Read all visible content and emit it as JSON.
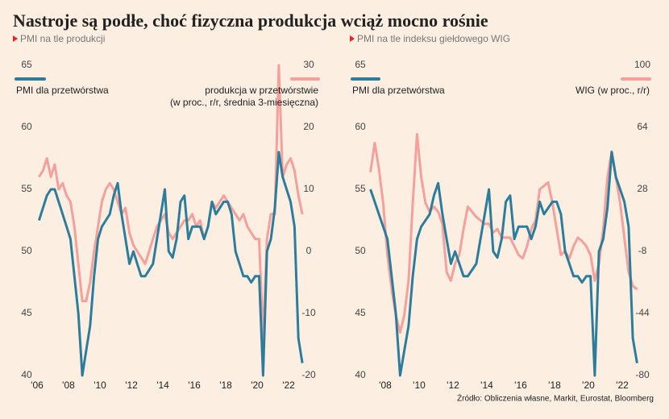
{
  "title": "Nastroje są podłe, choć fizyczna produkcja wciąż mocno rośnie",
  "source": "Źródło: Obliczenia własne, Markit, Eurostat, Bloomberg",
  "chart_data": [
    {
      "type": "line",
      "subtitle": "PMI na tle produkcji",
      "xlim": [
        2006,
        2022.9
      ],
      "xticks": [
        {
          "value": 2006,
          "label": "'06"
        },
        {
          "value": 2008,
          "label": "'08"
        },
        {
          "value": 2010,
          "label": "'10"
        },
        {
          "value": 2012,
          "label": "'12"
        },
        {
          "value": 2014,
          "label": "'14"
        },
        {
          "value": 2016,
          "label": "'16"
        },
        {
          "value": 2018,
          "label": "'18"
        },
        {
          "value": 2020,
          "label": "'20"
        },
        {
          "value": 2022,
          "label": "'22"
        }
      ],
      "ylim": [
        40,
        65
      ],
      "yticks": [
        40,
        45,
        50,
        55,
        60,
        65
      ],
      "y2lim": [
        -20,
        30
      ],
      "y2ticks": [
        -20,
        -10,
        0,
        10,
        20,
        30
      ],
      "x": [
        2006.125,
        2006.375,
        2006.625,
        2006.875,
        2007.125,
        2007.375,
        2007.625,
        2007.875,
        2008.125,
        2008.375,
        2008.625,
        2008.875,
        2009.125,
        2009.375,
        2009.625,
        2009.875,
        2010.125,
        2010.375,
        2010.625,
        2010.875,
        2011.125,
        2011.375,
        2011.625,
        2011.875,
        2012.125,
        2012.375,
        2012.625,
        2012.875,
        2013.125,
        2013.375,
        2013.625,
        2013.875,
        2014.125,
        2014.375,
        2014.625,
        2014.875,
        2015.125,
        2015.375,
        2015.625,
        2015.875,
        2016.125,
        2016.375,
        2016.625,
        2016.875,
        2017.125,
        2017.375,
        2017.625,
        2017.875,
        2018.125,
        2018.375,
        2018.625,
        2018.875,
        2019.125,
        2019.375,
        2019.625,
        2019.875,
        2020.125,
        2020.375,
        2020.625,
        2020.875,
        2021.125,
        2021.375,
        2021.625,
        2021.875,
        2022.125,
        2022.375,
        2022.625,
        2022.875
      ],
      "series": [
        {
          "name": "produkcja w przetwórstwie\n(w proc., r/r, średnia 3-miesięczna)",
          "color": "#f5a09b",
          "axis": "y2",
          "values": [
            12,
            13,
            15,
            12,
            14,
            10,
            11,
            9,
            8,
            4,
            -2,
            -8,
            -8,
            -5,
            0,
            4,
            8,
            10,
            11,
            10,
            8,
            6,
            7,
            3,
            1,
            0,
            -1,
            -2,
            0,
            2,
            4,
            5,
            6,
            3,
            2,
            3,
            4,
            5,
            5,
            6,
            4,
            5,
            2,
            4,
            8,
            7,
            8,
            9,
            8,
            7,
            6,
            5,
            6,
            4,
            3,
            2,
            2,
            -14,
            2,
            6,
            6,
            30,
            12,
            14,
            15,
            13,
            9,
            6
          ]
        },
        {
          "name": "PMI dla przetwórstwa",
          "color": "#2c7d9c",
          "values": [
            52.5,
            53.5,
            54.5,
            55,
            55,
            54,
            53,
            52,
            51,
            48,
            45,
            40,
            42,
            44,
            48,
            51,
            52,
            52.5,
            53,
            54.5,
            55.5,
            53,
            51,
            49,
            50,
            49,
            48,
            48,
            48.5,
            49,
            51,
            53,
            55,
            50,
            49.5,
            51,
            54,
            54.5,
            51,
            52,
            52,
            52,
            51,
            52,
            54,
            53,
            53.5,
            54,
            54,
            53,
            50,
            49,
            48,
            48,
            47.5,
            48,
            48,
            40,
            50,
            51,
            53.5,
            58,
            56,
            55,
            54,
            52,
            43,
            41
          ]
        }
      ]
    },
    {
      "type": "line",
      "subtitle": "PMI na tle indeksu giełdowego WIG",
      "xlim": [
        2007,
        2022.9
      ],
      "xticks": [
        {
          "value": 2008,
          "label": "'08"
        },
        {
          "value": 2010,
          "label": "'10"
        },
        {
          "value": 2012,
          "label": "'12"
        },
        {
          "value": 2014,
          "label": "'14"
        },
        {
          "value": 2016,
          "label": "'16"
        },
        {
          "value": 2018,
          "label": "'18"
        },
        {
          "value": 2020,
          "label": "'20"
        },
        {
          "value": 2022,
          "label": "'22"
        }
      ],
      "ylim": [
        40,
        65
      ],
      "yticks": [
        40,
        45,
        50,
        55,
        60,
        65
      ],
      "y2lim": [
        -80,
        100
      ],
      "y2ticks": [
        -80,
        -44,
        -8,
        28,
        64,
        100
      ],
      "x": [
        2007.125,
        2007.375,
        2007.625,
        2007.875,
        2008.125,
        2008.375,
        2008.625,
        2008.875,
        2009.125,
        2009.375,
        2009.625,
        2009.875,
        2010.125,
        2010.375,
        2010.625,
        2010.875,
        2011.125,
        2011.375,
        2011.625,
        2011.875,
        2012.125,
        2012.375,
        2012.625,
        2012.875,
        2013.125,
        2013.375,
        2013.625,
        2013.875,
        2014.125,
        2014.375,
        2014.625,
        2014.875,
        2015.125,
        2015.375,
        2015.625,
        2015.875,
        2016.125,
        2016.375,
        2016.625,
        2016.875,
        2017.125,
        2017.375,
        2017.625,
        2017.875,
        2018.125,
        2018.375,
        2018.625,
        2018.875,
        2019.125,
        2019.375,
        2019.625,
        2019.875,
        2020.125,
        2020.375,
        2020.625,
        2020.875,
        2021.125,
        2021.375,
        2021.625,
        2021.875,
        2022.125,
        2022.375,
        2022.625,
        2022.875
      ],
      "series": [
        {
          "name": "WIG (w proc., r/r)",
          "color": "#f5a09b",
          "axis": "y2",
          "values": [
            38,
            55,
            40,
            20,
            -10,
            -30,
            -45,
            -55,
            -45,
            -25,
            20,
            60,
            35,
            20,
            15,
            18,
            15,
            8,
            -20,
            -25,
            -15,
            -10,
            5,
            18,
            15,
            12,
            10,
            8,
            8,
            3,
            5,
            0,
            0,
            0,
            -5,
            -10,
            -12,
            -5,
            5,
            10,
            28,
            30,
            32,
            20,
            5,
            -10,
            -8,
            -12,
            -5,
            0,
            -2,
            -5,
            -10,
            -25,
            -15,
            5,
            35,
            50,
            35,
            20,
            0,
            -20,
            -28,
            -30
          ]
        },
        {
          "name": "PMI dla przetwórstwa",
          "color": "#2c7d9c",
          "values": [
            55,
            54,
            53,
            52,
            51,
            48,
            45,
            40,
            42,
            44,
            48,
            51,
            52,
            52.5,
            53,
            54.5,
            55.5,
            53,
            51,
            49,
            50,
            49,
            48,
            48,
            48.5,
            49,
            51,
            53,
            55,
            50,
            49.5,
            51,
            54,
            54.5,
            51,
            52,
            52,
            52,
            51,
            52,
            54,
            53,
            53.5,
            54,
            54,
            53,
            50,
            49,
            48,
            48,
            47.5,
            48,
            48,
            40,
            50,
            51,
            53.5,
            58,
            56,
            55,
            54,
            52,
            43,
            41
          ]
        }
      ]
    }
  ]
}
